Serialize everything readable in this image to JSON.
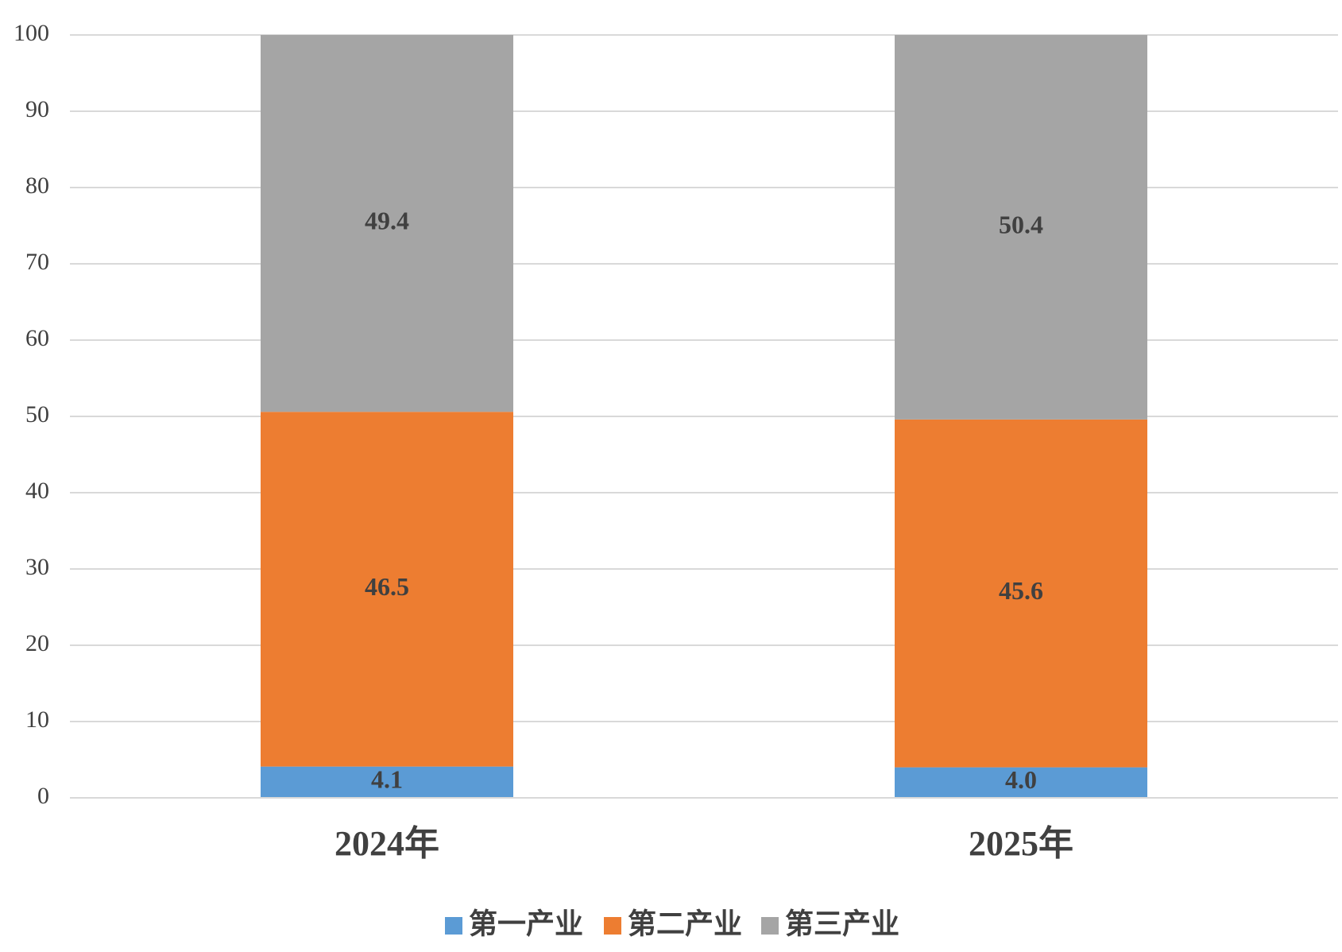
{
  "chart_data": {
    "type": "stacked_bar",
    "categories": [
      "2024年",
      "2025年"
    ],
    "series": [
      {
        "name": "第一产业",
        "color": "#5b9bd5",
        "values": [
          4.1,
          4.0
        ],
        "value_labels": [
          "4.1",
          "4.0"
        ]
      },
      {
        "name": "第二产业",
        "color": "#ed7d31",
        "values": [
          46.5,
          45.6
        ]
      },
      {
        "name": "第三产业",
        "color": "#a5a5a5",
        "values": [
          49.4,
          50.4
        ]
      }
    ],
    "ylim": [
      0,
      100
    ],
    "yticks": [
      0,
      10,
      20,
      30,
      40,
      50,
      60,
      70,
      80,
      90,
      100
    ],
    "grid": true,
    "legend": "bottom"
  }
}
